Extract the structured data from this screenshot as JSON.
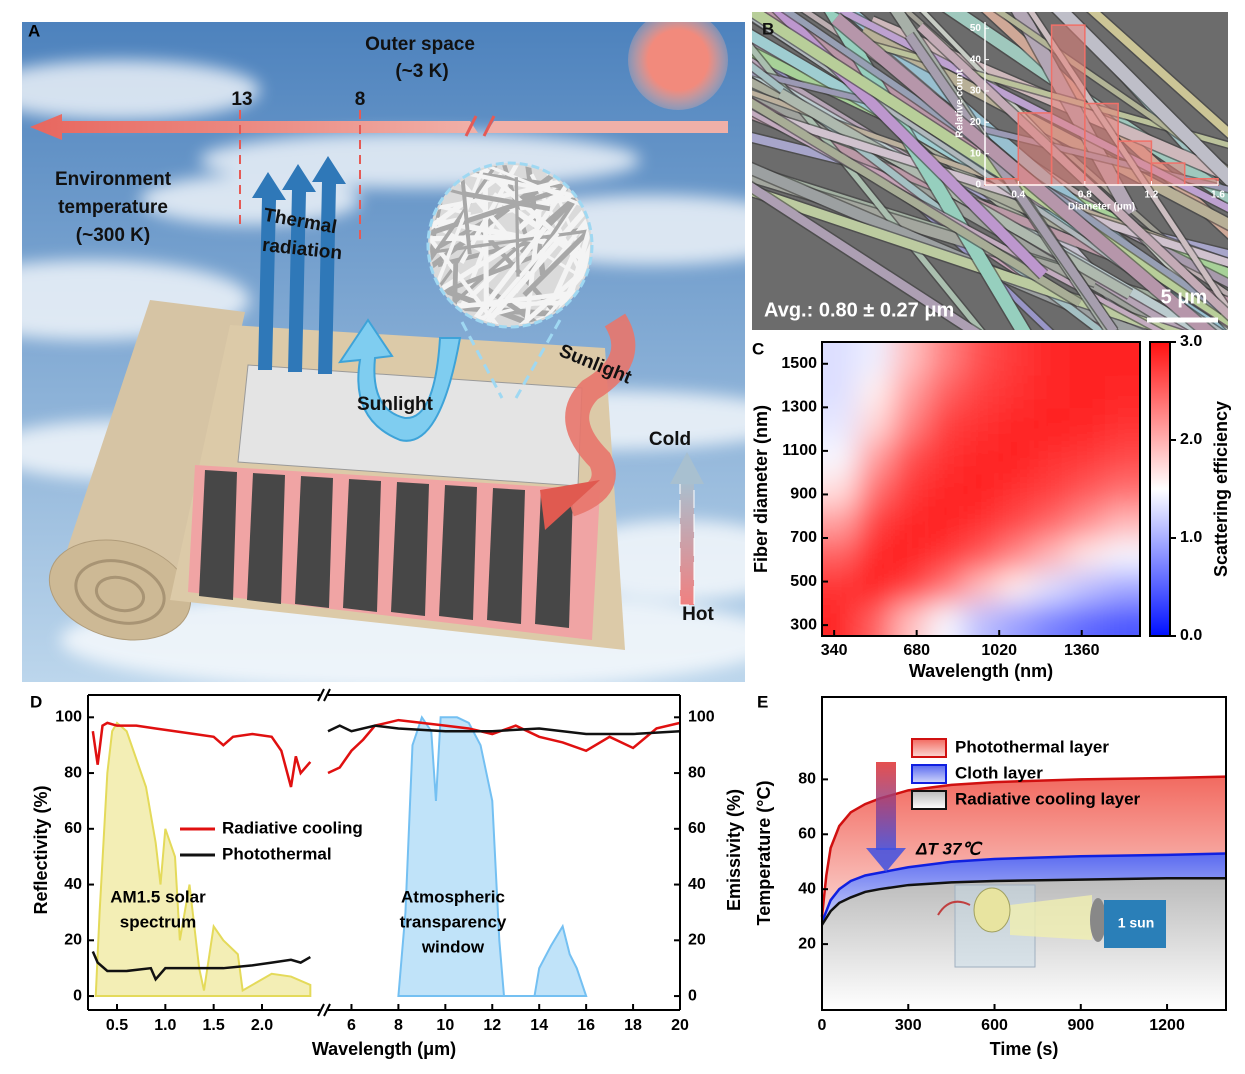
{
  "illustration": {
    "label": "A",
    "texts": [
      "Outer space",
      "(~3 K)",
      "13",
      "8",
      "Environment",
      "temperature",
      "(~300 K)",
      "Thermal",
      "radiation",
      "Sunlight",
      "Sunlight",
      "Cold",
      "Hot"
    ]
  },
  "sem": {
    "label": "B",
    "average": "Avg.: 0.80 ± 0.27 μm",
    "scale_bar": "5 μm"
  },
  "chart_data": [
    {
      "type": "histogram",
      "xlabel": "Diameter (μm)",
      "ylabel": "Relative count",
      "bins": [
        0.2,
        0.4,
        0.6,
        0.8,
        1.0,
        1.2,
        1.4,
        1.6
      ],
      "counts": [
        2,
        23,
        51,
        26,
        14,
        7,
        2
      ],
      "color": "#e8837c",
      "xlim": [
        0.2,
        1.6
      ],
      "ylim": [
        0,
        52
      ],
      "xticks": [
        0.4,
        0.8,
        1.2,
        1.6
      ],
      "yticks": [
        0,
        10,
        20,
        30,
        40,
        50
      ]
    },
    {
      "type": "heatmap",
      "label": "C",
      "xlabel": "Wavelength (nm)",
      "ylabel": "Fiber diameter (nm)",
      "colorbar_label": "Scattering efficiency",
      "x": [
        363,
        508,
        654,
        800,
        945,
        1091,
        1236,
        1382,
        1527
      ],
      "y": [
        325,
        475,
        625,
        775,
        925,
        1075,
        1225,
        1375,
        1525
      ],
      "z": [
        [
          2.85,
          2.5,
          1.9,
          1.45,
          1.1,
          0.9,
          0.7,
          0.55,
          0.45
        ],
        [
          2.8,
          2.9,
          2.7,
          2.35,
          1.9,
          1.6,
          1.3,
          1.1,
          0.95
        ],
        [
          2.5,
          2.85,
          2.9,
          2.75,
          2.55,
          2.25,
          1.95,
          1.65,
          1.45
        ],
        [
          2.1,
          2.7,
          2.85,
          2.9,
          2.8,
          2.65,
          2.45,
          2.2,
          1.95
        ],
        [
          1.7,
          2.4,
          2.75,
          2.85,
          2.9,
          2.8,
          2.7,
          2.55,
          2.4
        ],
        [
          1.45,
          2.1,
          2.6,
          2.8,
          2.85,
          2.9,
          2.8,
          2.75,
          2.65
        ],
        [
          1.35,
          1.75,
          2.3,
          2.7,
          2.8,
          2.85,
          2.9,
          2.85,
          2.8
        ],
        [
          1.3,
          1.6,
          2.1,
          2.5,
          2.7,
          2.8,
          2.85,
          2.9,
          2.85
        ],
        [
          1.3,
          1.4,
          1.9,
          2.3,
          2.6,
          2.75,
          2.85,
          2.9,
          2.9
        ]
      ],
      "xlim": [
        290,
        1600
      ],
      "ylim": [
        250,
        1600
      ],
      "xticks": [
        340,
        680,
        1020,
        1360
      ],
      "yticks": [
        300,
        500,
        700,
        900,
        1100,
        1300,
        1500
      ],
      "clim": [
        0,
        3
      ],
      "colors": [
        "#0010ff",
        "#ffffff",
        "#ff1010"
      ],
      "cticks": [
        {
          "value": 0,
          "label": "0.0"
        },
        {
          "value": 1,
          "label": "1.0"
        },
        {
          "value": 2,
          "label": "2.0"
        },
        {
          "value": 3,
          "label": "3.0"
        }
      ]
    },
    {
      "type": "line",
      "label": "D",
      "xlabel": "Wavelength (μm)",
      "ylabel": "Reflectivity (%)",
      "y2label": "Emissivity (%)",
      "xsegments": [
        {
          "xlim": [
            0.2,
            2.6
          ],
          "xticks": [
            0.5,
            {
              "value": 1,
              "label": "1.0"
            },
            1.5,
            {
              "value": 2,
              "label": "2.0"
            }
          ]
        },
        {
          "xlim": [
            5,
            20
          ],
          "xticks": [
            6,
            8,
            10,
            12,
            14,
            16,
            18,
            20
          ]
        }
      ],
      "ylim": [
        -5,
        108
      ],
      "yticks": [
        0,
        20,
        40,
        60,
        80,
        100
      ],
      "y2lim": [
        -5,
        108
      ],
      "y2ticks": [
        0,
        20,
        40,
        60,
        80,
        100
      ],
      "series": [
        {
          "name": "Radiative cooling",
          "color": "#e01010",
          "x": [
            0.25,
            0.3,
            0.35,
            0.4,
            0.5,
            0.7,
            0.9,
            1.1,
            1.3,
            1.5,
            1.6,
            1.7,
            1.9,
            2.1,
            2.2,
            2.3,
            2.35,
            2.4,
            2.5,
            4,
            5,
            5.5,
            6,
            6.5,
            7,
            8,
            9,
            10,
            11,
            12,
            13,
            14,
            15,
            16,
            17,
            18,
            19,
            20
          ],
          "values": [
            95,
            83,
            97,
            98,
            97,
            97,
            96,
            95,
            94,
            93,
            90,
            93,
            94,
            93,
            88,
            75,
            86,
            80,
            84,
            null,
            80,
            82,
            88,
            92,
            97,
            99,
            98,
            97,
            96,
            94,
            97,
            93,
            91,
            88,
            93,
            89,
            96,
            98
          ]
        },
        {
          "name": "Photothermal",
          "color": "#111111",
          "x": [
            0.25,
            0.3,
            0.4,
            0.6,
            0.85,
            0.9,
            1.0,
            1.3,
            1.6,
            1.9,
            2.1,
            2.3,
            2.4,
            2.5,
            4,
            5,
            5.5,
            6,
            7,
            8,
            10,
            12,
            14,
            16,
            18,
            20
          ],
          "values": [
            16,
            12,
            9,
            9,
            10,
            6,
            10,
            10,
            10,
            11,
            12,
            13,
            12,
            14,
            null,
            95,
            97,
            95,
            97,
            96,
            95,
            95,
            96,
            94,
            94,
            95
          ]
        }
      ],
      "bands": [
        {
          "label": [
            "AM1.5 solar",
            "spectrum"
          ],
          "color": "#e4da5a",
          "x": [
            0.28,
            0.32,
            0.4,
            0.45,
            0.5,
            0.6,
            0.7,
            0.8,
            0.9,
            0.95,
            1.0,
            1.1,
            1.15,
            1.25,
            1.35,
            1.4,
            1.5,
            1.6,
            1.75,
            1.8,
            1.95,
            2.1,
            2.3,
            2.5
          ],
          "values": [
            0,
            30,
            80,
            95,
            98,
            95,
            85,
            75,
            55,
            40,
            60,
            50,
            20,
            40,
            10,
            2,
            25,
            20,
            15,
            2,
            5,
            8,
            7,
            4
          ]
        },
        {
          "label": [
            "Atmospheric",
            "transparency",
            "window"
          ],
          "color": "#74c0f2",
          "x": [
            8,
            8.3,
            8.6,
            9,
            9.4,
            9.6,
            9.8,
            10.5,
            11,
            11.5,
            12,
            12.3,
            12.5,
            13.8,
            14,
            14.5,
            15,
            15.3,
            15.6,
            16
          ],
          "values": [
            0,
            30,
            90,
            100,
            95,
            70,
            100,
            100,
            98,
            90,
            70,
            20,
            0,
            0,
            10,
            18,
            25,
            15,
            10,
            0
          ]
        }
      ]
    },
    {
      "type": "line",
      "label": "E",
      "xlabel": "Time (s)",
      "ylabel": "Temperature (°C)",
      "annotation": "ΔT 37℃",
      "icon_text": "1 sun",
      "x": [
        0,
        15,
        30,
        60,
        100,
        150,
        200,
        300,
        450,
        600,
        900,
        1200,
        1405
      ],
      "xlim": [
        0,
        1405
      ],
      "ylim": [
        -4,
        110
      ],
      "xticks": [
        0,
        300,
        600,
        900,
        1200
      ],
      "yticks": [
        20,
        40,
        60,
        80
      ],
      "series": [
        {
          "name": "Photothermal layer",
          "color": "#d01010",
          "values": [
            30,
            45,
            55,
            63,
            68,
            71,
            73,
            76,
            78,
            79,
            80,
            80.5,
            81
          ]
        },
        {
          "name": "Cloth layer",
          "color": "#1020e0",
          "values": [
            28,
            32,
            36,
            40,
            43,
            45,
            46,
            48,
            50,
            51,
            52,
            52.5,
            53
          ]
        },
        {
          "name": "Radiative cooling layer",
          "color": "#111111",
          "values": [
            27,
            29.5,
            32,
            35,
            37,
            39,
            40,
            41.5,
            42.5,
            43,
            43.5,
            44,
            44
          ]
        }
      ]
    }
  ]
}
